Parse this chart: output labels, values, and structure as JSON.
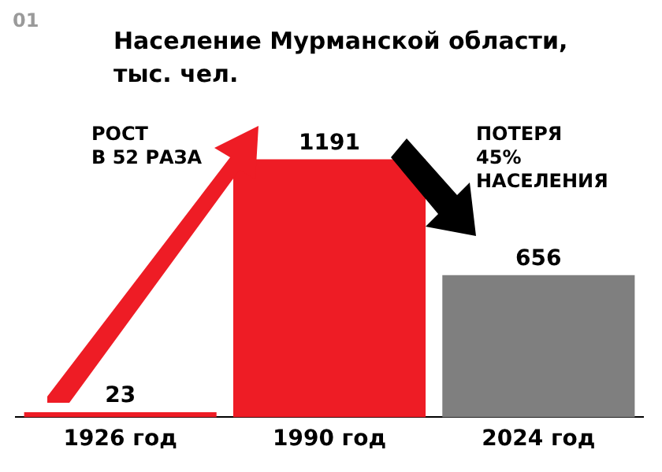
{
  "chart_data": {
    "type": "bar",
    "title": "Население Мурманской области, тыс. чел.",
    "categories": [
      "1926 год",
      "1990 год",
      "2024 год"
    ],
    "values": [
      23,
      1191,
      656
    ],
    "colors": [
      "#ee1c25",
      "#ee1c25",
      "#7f7f7f"
    ],
    "data_labels": true,
    "grid": false,
    "legend": false,
    "annotations": [
      "01",
      "РОСТ\nВ 52 РАЗА",
      "ПОТЕРЯ\n45%\nНАСЕЛЕНИЯ"
    ]
  }
}
